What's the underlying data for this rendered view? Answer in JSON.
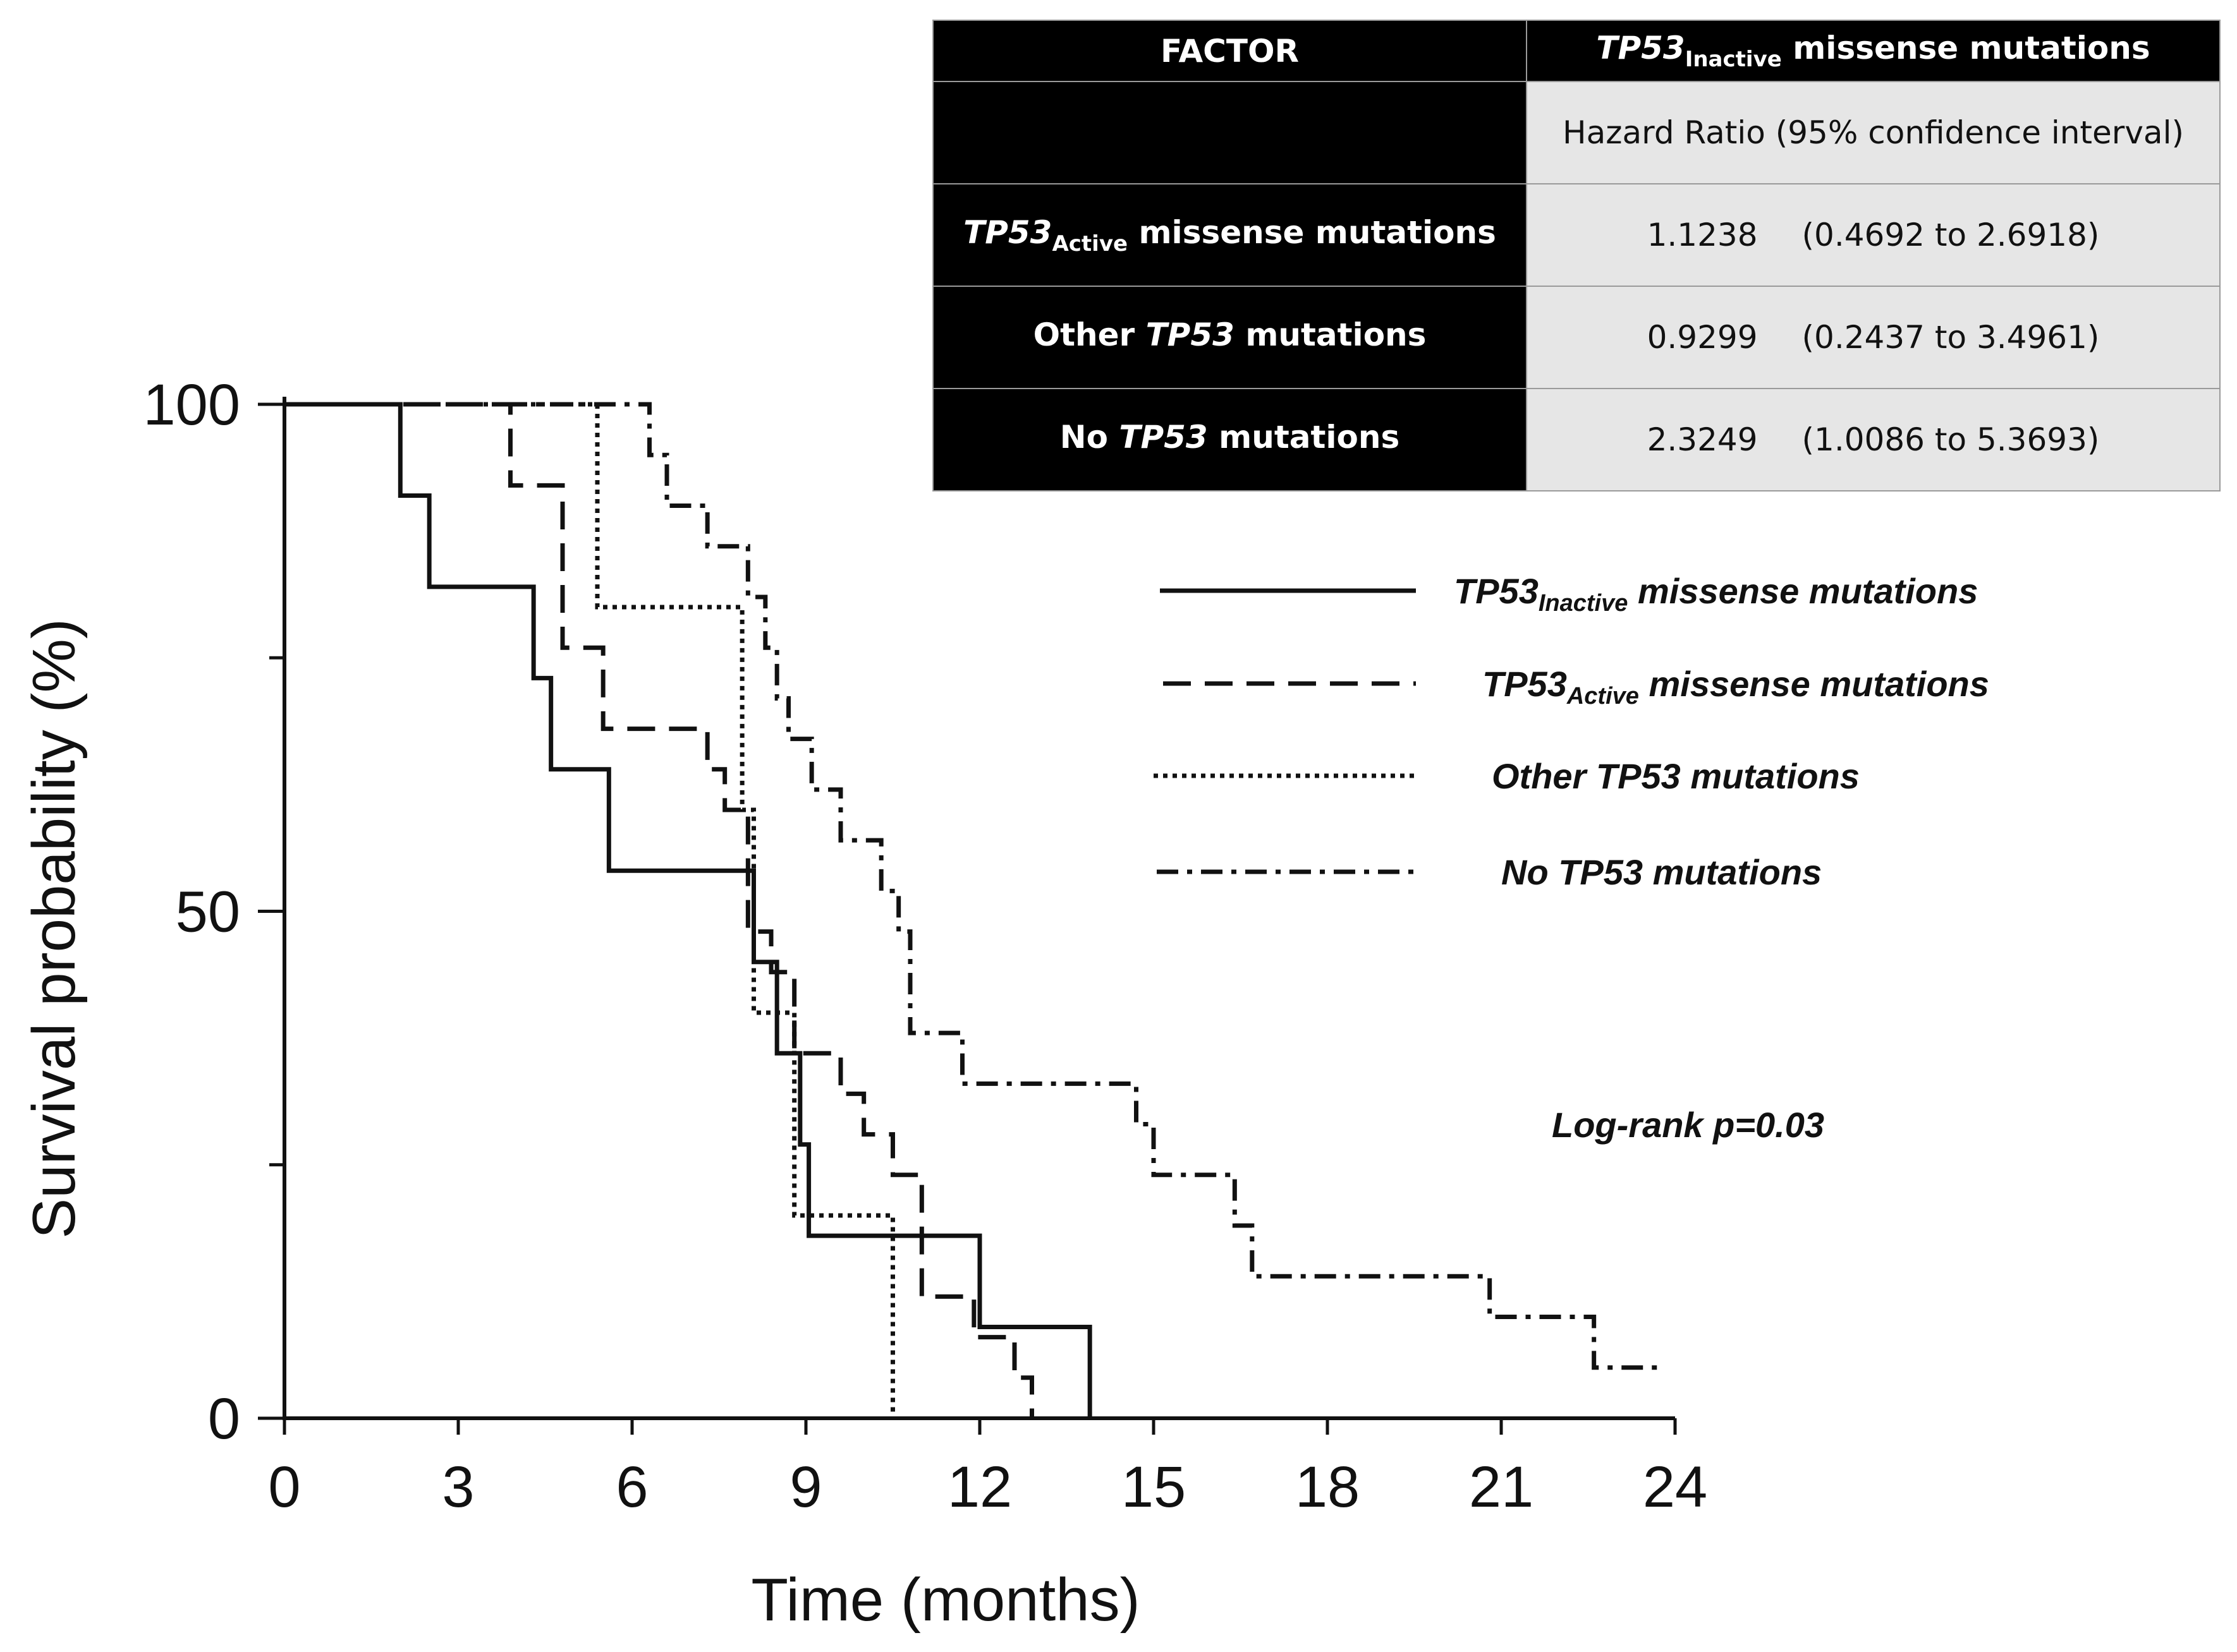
{
  "chart_data": {
    "type": "line",
    "step": true,
    "xlabel": "Time (months)",
    "ylabel": "Survival probability (%)",
    "xlim": [
      0,
      24
    ],
    "ylim": [
      0,
      100
    ],
    "x_ticks": [
      "0",
      "3",
      "6",
      "9",
      "12",
      "15",
      "18",
      "21",
      "24"
    ],
    "y_ticks": [
      "0",
      "50",
      "100"
    ],
    "series": [
      {
        "name": "TP53Inactive missense mutations",
        "style": "solid",
        "x": [
          0,
          2,
          2.5,
          4.3,
          4.6,
          5.6,
          8.1,
          8.5,
          8.9,
          9.05,
          12,
          13.9
        ],
        "y": [
          100,
          91,
          82,
          73,
          64,
          54,
          45,
          36,
          27,
          18,
          9,
          0
        ]
      },
      {
        "name": "TP53Active missense mutations",
        "style": "dashed",
        "x": [
          0,
          3.9,
          4.8,
          5.5,
          7.3,
          7.6,
          8.0,
          8.4,
          8.8,
          9.6,
          10.0,
          10.5,
          11.0,
          11.9,
          12.6,
          12.9
        ],
        "y": [
          100,
          92,
          76,
          68,
          64,
          60,
          48,
          44,
          36,
          32,
          28,
          24,
          12,
          8,
          4,
          0
        ]
      },
      {
        "name": "Other TP53 mutations",
        "style": "dotted",
        "x": [
          0,
          5.4,
          7.9,
          8.1,
          8.8,
          10.5
        ],
        "y": [
          100,
          80,
          60,
          40,
          20,
          0
        ]
      },
      {
        "name": "No TP53 mutations",
        "style": "dashdot",
        "x": [
          0,
          6.3,
          6.6,
          7.3,
          8.0,
          8.3,
          8.5,
          8.7,
          9.1,
          9.6,
          10.3,
          10.6,
          10.8,
          11.7,
          14.7,
          15.0,
          16.4,
          16.7,
          20.8,
          22.6,
          23.7
        ],
        "y": [
          100,
          95,
          90,
          86,
          81,
          76,
          71,
          67,
          62,
          57,
          52,
          48,
          38,
          33,
          29,
          24,
          19,
          14,
          10,
          5,
          5
        ]
      }
    ],
    "legend": [
      {
        "prefix": "TP53",
        "sub": "Inactive",
        "suffix": " missense mutations"
      },
      {
        "prefix": "TP53",
        "sub": "Active",
        "suffix": " missense mutations"
      },
      {
        "prefix": "Other TP53 mutations",
        "sub": "",
        "suffix": ""
      },
      {
        "prefix": "No TP53 mutations",
        "sub": "",
        "suffix": ""
      }
    ],
    "annotation": "Log-rank p=0.03"
  },
  "table": {
    "header_factor": "FACTOR",
    "header_hr_gene": "TP53",
    "header_hr_sub": "Inactive",
    "header_hr_rest": " missense mutations",
    "subheader": "Hazard  Ratio (95% confidence interval)",
    "rows": [
      {
        "gene_prefix": "",
        "gene": "TP53",
        "sub": "Active",
        "rest": " missense mutations",
        "hr": "1.1238",
        "ci": "(0.4692 to 2.6918)"
      },
      {
        "gene_prefix": "Other ",
        "gene": "TP53",
        "sub": "",
        "rest": " mutations",
        "hr": "0.9299",
        "ci": "(0.2437 to 3.4961)"
      },
      {
        "gene_prefix": "No ",
        "gene": "TP53",
        "sub": "",
        "rest": " mutations",
        "hr": "2.3249",
        "ci": "(1.0086 to 5.3693)"
      }
    ]
  }
}
